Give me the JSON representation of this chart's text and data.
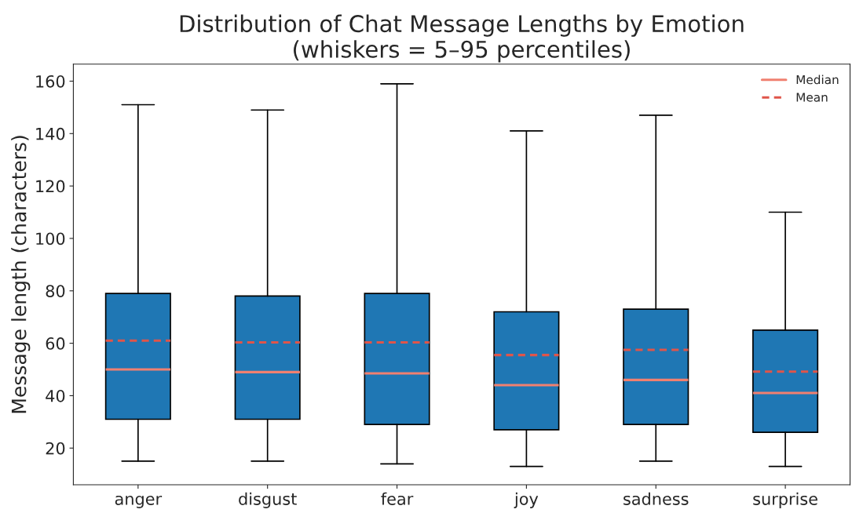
{
  "chart_data": {
    "type": "box",
    "title": "Distribution of Chat Message Lengths by Emotion\n(whiskers = 5–95 percentiles)",
    "ylabel": "Message length (characters)",
    "categories": [
      "anger",
      "disgust",
      "fear",
      "joy",
      "sadness",
      "surprise"
    ],
    "color": "#1f77b4",
    "boxes": [
      {
        "low": 15,
        "q1": 31,
        "median": 50,
        "q3": 79,
        "high": 151,
        "mean": 61
      },
      {
        "low": 15,
        "q1": 31,
        "median": 49,
        "q3": 78,
        "high": 149,
        "mean": 60.3
      },
      {
        "low": 14,
        "q1": 29,
        "median": 48.5,
        "q3": 79,
        "high": 159,
        "mean": 60.3
      },
      {
        "low": 13,
        "q1": 27,
        "median": 44,
        "q3": 72,
        "high": 141,
        "mean": 55.5
      },
      {
        "low": 15,
        "q1": 29,
        "median": 46,
        "q3": 73,
        "high": 147,
        "mean": 57.5
      },
      {
        "low": 13,
        "q1": 26,
        "median": 41,
        "q3": 65,
        "high": 110,
        "mean": 49.2
      }
    ],
    "annotations": [
      "Median",
      "Mean"
    ],
    "ylim": [
      6,
      166.5
    ],
    "yticks": [
      20,
      40,
      60,
      80,
      100,
      120,
      140,
      160
    ],
    "grid": false
  }
}
